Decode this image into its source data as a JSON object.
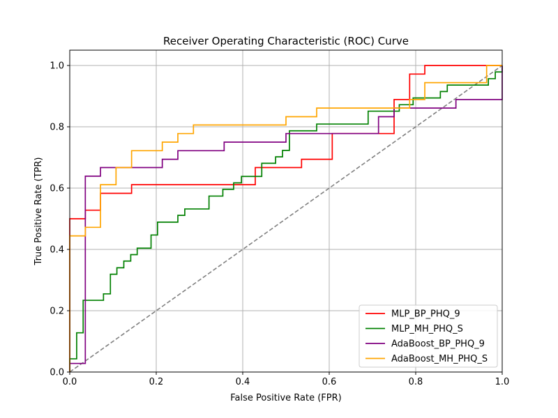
{
  "chart_data": {
    "type": "line",
    "title": "Receiver Operating Characteristic (ROC) Curve",
    "xlabel": "False Positive Rate (FPR)",
    "ylabel": "True Positive Rate (TPR)",
    "xlim": [
      0,
      1
    ],
    "ylim": [
      0,
      1.05
    ],
    "grid": true,
    "legend_position": "lower-right",
    "x_ticks": [
      "0.0",
      "0.2",
      "0.4",
      "0.6",
      "0.8",
      "1.0"
    ],
    "y_ticks": [
      "0.0",
      "0.2",
      "0.4",
      "0.6",
      "0.8",
      "1.0"
    ],
    "diagonal_reference": {
      "color": "#808080",
      "style": "dashed",
      "points": [
        [
          0,
          0
        ],
        [
          1,
          1
        ]
      ]
    },
    "series": [
      {
        "name": "MLP_BP_PHQ_9",
        "color": "#ff0000",
        "points": [
          [
            0,
            0
          ],
          [
            0,
            0.5
          ],
          [
            0.036,
            0.5
          ],
          [
            0.036,
            0.528
          ],
          [
            0.071,
            0.528
          ],
          [
            0.071,
            0.583
          ],
          [
            0.143,
            0.583
          ],
          [
            0.143,
            0.611
          ],
          [
            0.429,
            0.611
          ],
          [
            0.429,
            0.667
          ],
          [
            0.536,
            0.667
          ],
          [
            0.536,
            0.694
          ],
          [
            0.607,
            0.694
          ],
          [
            0.607,
            0.778
          ],
          [
            0.75,
            0.778
          ],
          [
            0.75,
            0.889
          ],
          [
            0.786,
            0.889
          ],
          [
            0.786,
            0.972
          ],
          [
            0.821,
            0.972
          ],
          [
            0.821,
            1.0
          ],
          [
            1.0,
            1.0
          ]
        ]
      },
      {
        "name": "MLP_MH_PHQ_S",
        "color": "#008000",
        "points": [
          [
            0,
            0
          ],
          [
            0,
            0.043
          ],
          [
            0.016,
            0.043
          ],
          [
            0.016,
            0.128
          ],
          [
            0.031,
            0.128
          ],
          [
            0.031,
            0.234
          ],
          [
            0.078,
            0.234
          ],
          [
            0.078,
            0.255
          ],
          [
            0.094,
            0.255
          ],
          [
            0.094,
            0.319
          ],
          [
            0.109,
            0.319
          ],
          [
            0.109,
            0.34
          ],
          [
            0.125,
            0.34
          ],
          [
            0.125,
            0.362
          ],
          [
            0.141,
            0.362
          ],
          [
            0.141,
            0.383
          ],
          [
            0.156,
            0.383
          ],
          [
            0.156,
            0.404
          ],
          [
            0.188,
            0.404
          ],
          [
            0.188,
            0.447
          ],
          [
            0.203,
            0.447
          ],
          [
            0.203,
            0.489
          ],
          [
            0.25,
            0.489
          ],
          [
            0.25,
            0.511
          ],
          [
            0.266,
            0.511
          ],
          [
            0.266,
            0.532
          ],
          [
            0.322,
            0.532
          ],
          [
            0.322,
            0.574
          ],
          [
            0.354,
            0.574
          ],
          [
            0.354,
            0.596
          ],
          [
            0.379,
            0.596
          ],
          [
            0.379,
            0.617
          ],
          [
            0.397,
            0.617
          ],
          [
            0.397,
            0.638
          ],
          [
            0.444,
            0.638
          ],
          [
            0.444,
            0.681
          ],
          [
            0.476,
            0.681
          ],
          [
            0.476,
            0.702
          ],
          [
            0.492,
            0.702
          ],
          [
            0.492,
            0.723
          ],
          [
            0.508,
            0.723
          ],
          [
            0.508,
            0.787
          ],
          [
            0.571,
            0.787
          ],
          [
            0.571,
            0.809
          ],
          [
            0.69,
            0.809
          ],
          [
            0.69,
            0.851
          ],
          [
            0.762,
            0.851
          ],
          [
            0.762,
            0.872
          ],
          [
            0.794,
            0.872
          ],
          [
            0.794,
            0.894
          ],
          [
            0.857,
            0.894
          ],
          [
            0.857,
            0.915
          ],
          [
            0.873,
            0.915
          ],
          [
            0.873,
            0.936
          ],
          [
            0.968,
            0.936
          ],
          [
            0.968,
            0.957
          ],
          [
            0.984,
            0.957
          ],
          [
            0.984,
            0.979
          ],
          [
            1.0,
            0.979
          ],
          [
            1.0,
            1.0
          ]
        ]
      },
      {
        "name": "AdaBoost_BP_PHQ_9",
        "color": "#800080",
        "points": [
          [
            0,
            0
          ],
          [
            0,
            0.028
          ],
          [
            0.036,
            0.028
          ],
          [
            0.036,
            0.639
          ],
          [
            0.071,
            0.639
          ],
          [
            0.071,
            0.667
          ],
          [
            0.214,
            0.667
          ],
          [
            0.214,
            0.694
          ],
          [
            0.25,
            0.694
          ],
          [
            0.25,
            0.722
          ],
          [
            0.357,
            0.722
          ],
          [
            0.357,
            0.75
          ],
          [
            0.5,
            0.75
          ],
          [
            0.5,
            0.778
          ],
          [
            0.714,
            0.778
          ],
          [
            0.714,
            0.833
          ],
          [
            0.75,
            0.833
          ],
          [
            0.75,
            0.861
          ],
          [
            0.893,
            0.861
          ],
          [
            0.893,
            0.889
          ],
          [
            1.0,
            0.889
          ],
          [
            1.0,
            1.0
          ]
        ]
      },
      {
        "name": "AdaBoost_MH_PHQ_S",
        "color": "#ffa500",
        "points": [
          [
            0,
            0
          ],
          [
            0,
            0.444
          ],
          [
            0.036,
            0.444
          ],
          [
            0.036,
            0.472
          ],
          [
            0.071,
            0.472
          ],
          [
            0.071,
            0.611
          ],
          [
            0.107,
            0.611
          ],
          [
            0.107,
            0.667
          ],
          [
            0.143,
            0.667
          ],
          [
            0.143,
            0.722
          ],
          [
            0.214,
            0.722
          ],
          [
            0.214,
            0.75
          ],
          [
            0.25,
            0.75
          ],
          [
            0.25,
            0.778
          ],
          [
            0.286,
            0.778
          ],
          [
            0.286,
            0.806
          ],
          [
            0.5,
            0.806
          ],
          [
            0.5,
            0.833
          ],
          [
            0.571,
            0.833
          ],
          [
            0.571,
            0.861
          ],
          [
            0.786,
            0.861
          ],
          [
            0.786,
            0.889
          ],
          [
            0.821,
            0.889
          ],
          [
            0.821,
            0.944
          ],
          [
            0.964,
            0.944
          ],
          [
            0.964,
            1.0
          ],
          [
            1.0,
            1.0
          ]
        ]
      }
    ]
  }
}
